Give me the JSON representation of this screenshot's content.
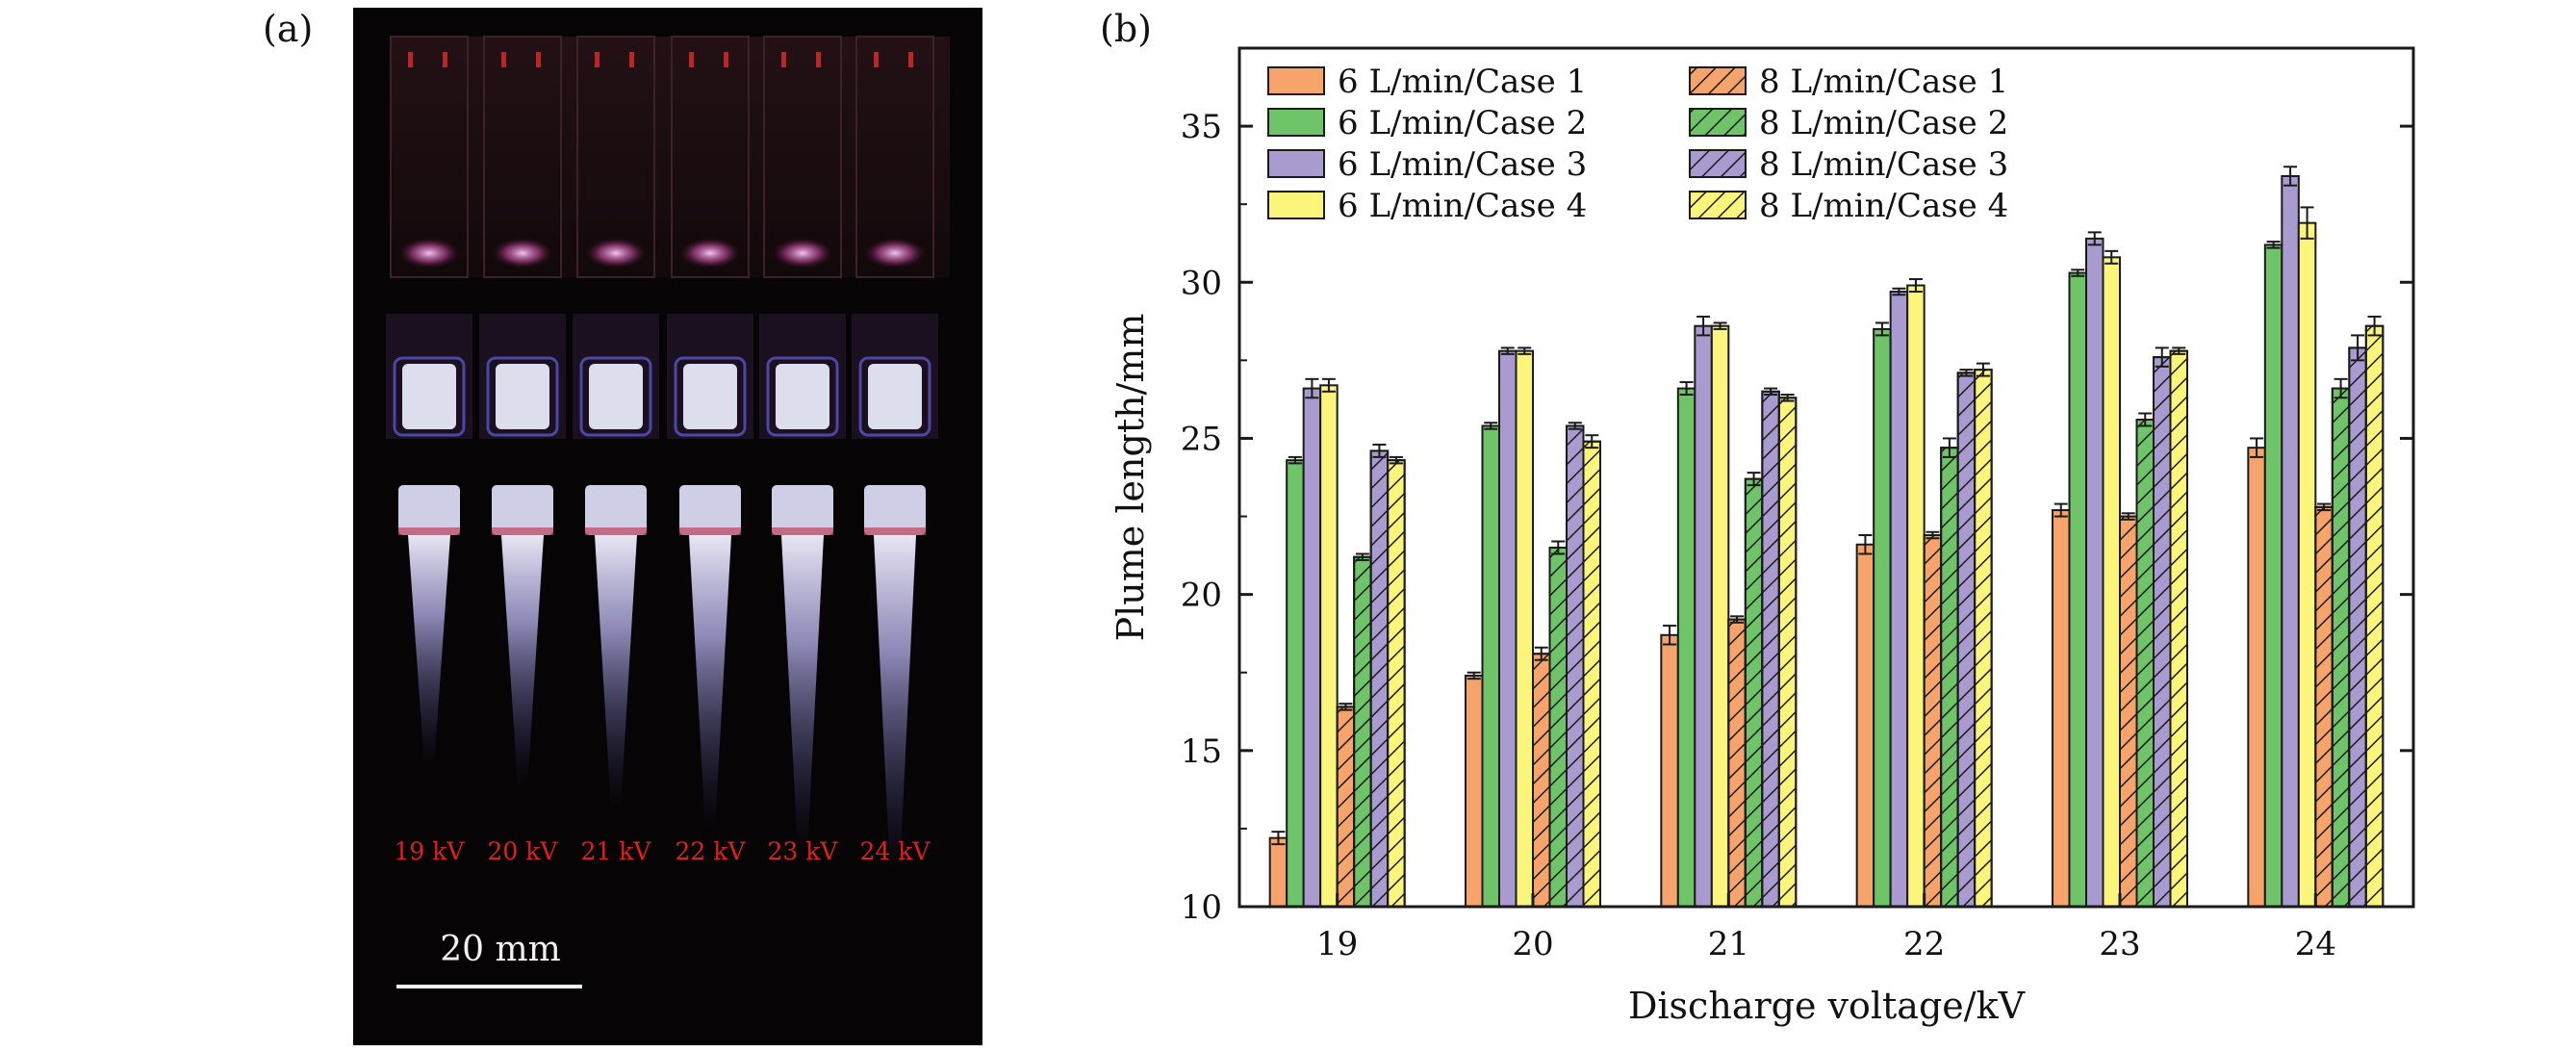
{
  "panel_a": {
    "label": "(a)",
    "voltage_labels": [
      "19 kV",
      "20 kV",
      "21 kV",
      "22 kV",
      "23 kV",
      "24 kV"
    ],
    "scale_bar_label": "20 mm"
  },
  "panel_b": {
    "label": "(b)"
  },
  "colors": {
    "case1": "#f7a46c",
    "case2": "#6fc46a",
    "case3": "#a99bd0",
    "case4": "#fbf57c",
    "edge": "#1a1a1a"
  },
  "chart_data": {
    "type": "bar",
    "title": "",
    "xlabel": "Discharge voltage/kV",
    "ylabel": "Plume length/mm",
    "ylim": [
      10,
      37.5
    ],
    "yticks": [
      10,
      15,
      20,
      25,
      30,
      35
    ],
    "categories": [
      "19",
      "20",
      "21",
      "22",
      "23",
      "24"
    ],
    "legend_position": "top-left",
    "series": [
      {
        "name": "6 L/min/Case 1",
        "hatch": false,
        "color": "case1",
        "values": [
          12.2,
          17.4,
          18.7,
          21.6,
          22.7,
          24.7
        ],
        "errors": [
          0.2,
          0.1,
          0.3,
          0.3,
          0.2,
          0.3
        ]
      },
      {
        "name": "6 L/min/Case 2",
        "hatch": false,
        "color": "case2",
        "values": [
          24.3,
          25.4,
          26.6,
          28.5,
          30.3,
          31.2
        ],
        "errors": [
          0.1,
          0.1,
          0.2,
          0.2,
          0.1,
          0.1
        ]
      },
      {
        "name": "6 L/min/Case 3",
        "hatch": false,
        "color": "case3",
        "values": [
          26.6,
          27.8,
          28.6,
          29.7,
          31.4,
          33.4
        ],
        "errors": [
          0.3,
          0.1,
          0.3,
          0.1,
          0.2,
          0.3
        ]
      },
      {
        "name": "6 L/min/Case 4",
        "hatch": false,
        "color": "case4",
        "values": [
          26.7,
          27.8,
          28.6,
          29.9,
          30.8,
          31.9
        ],
        "errors": [
          0.2,
          0.1,
          0.1,
          0.2,
          0.2,
          0.5
        ]
      },
      {
        "name": "8 L/min/Case 1",
        "hatch": true,
        "color": "case1",
        "values": [
          16.4,
          18.1,
          19.2,
          21.9,
          22.5,
          22.8
        ],
        "errors": [
          0.1,
          0.2,
          0.1,
          0.1,
          0.1,
          0.1
        ]
      },
      {
        "name": "8 L/min/Case 2",
        "hatch": true,
        "color": "case2",
        "values": [
          21.2,
          21.5,
          23.7,
          24.7,
          25.6,
          26.6
        ],
        "errors": [
          0.1,
          0.2,
          0.2,
          0.3,
          0.2,
          0.3
        ]
      },
      {
        "name": "8 L/min/Case 3",
        "hatch": true,
        "color": "case3",
        "values": [
          24.6,
          25.4,
          26.5,
          27.1,
          27.6,
          27.9
        ],
        "errors": [
          0.2,
          0.1,
          0.1,
          0.1,
          0.3,
          0.4
        ]
      },
      {
        "name": "8 L/min/Case 4",
        "hatch": true,
        "color": "case4",
        "values": [
          24.3,
          24.9,
          26.3,
          27.2,
          27.8,
          28.6
        ],
        "errors": [
          0.1,
          0.2,
          0.1,
          0.2,
          0.1,
          0.3
        ]
      }
    ]
  }
}
